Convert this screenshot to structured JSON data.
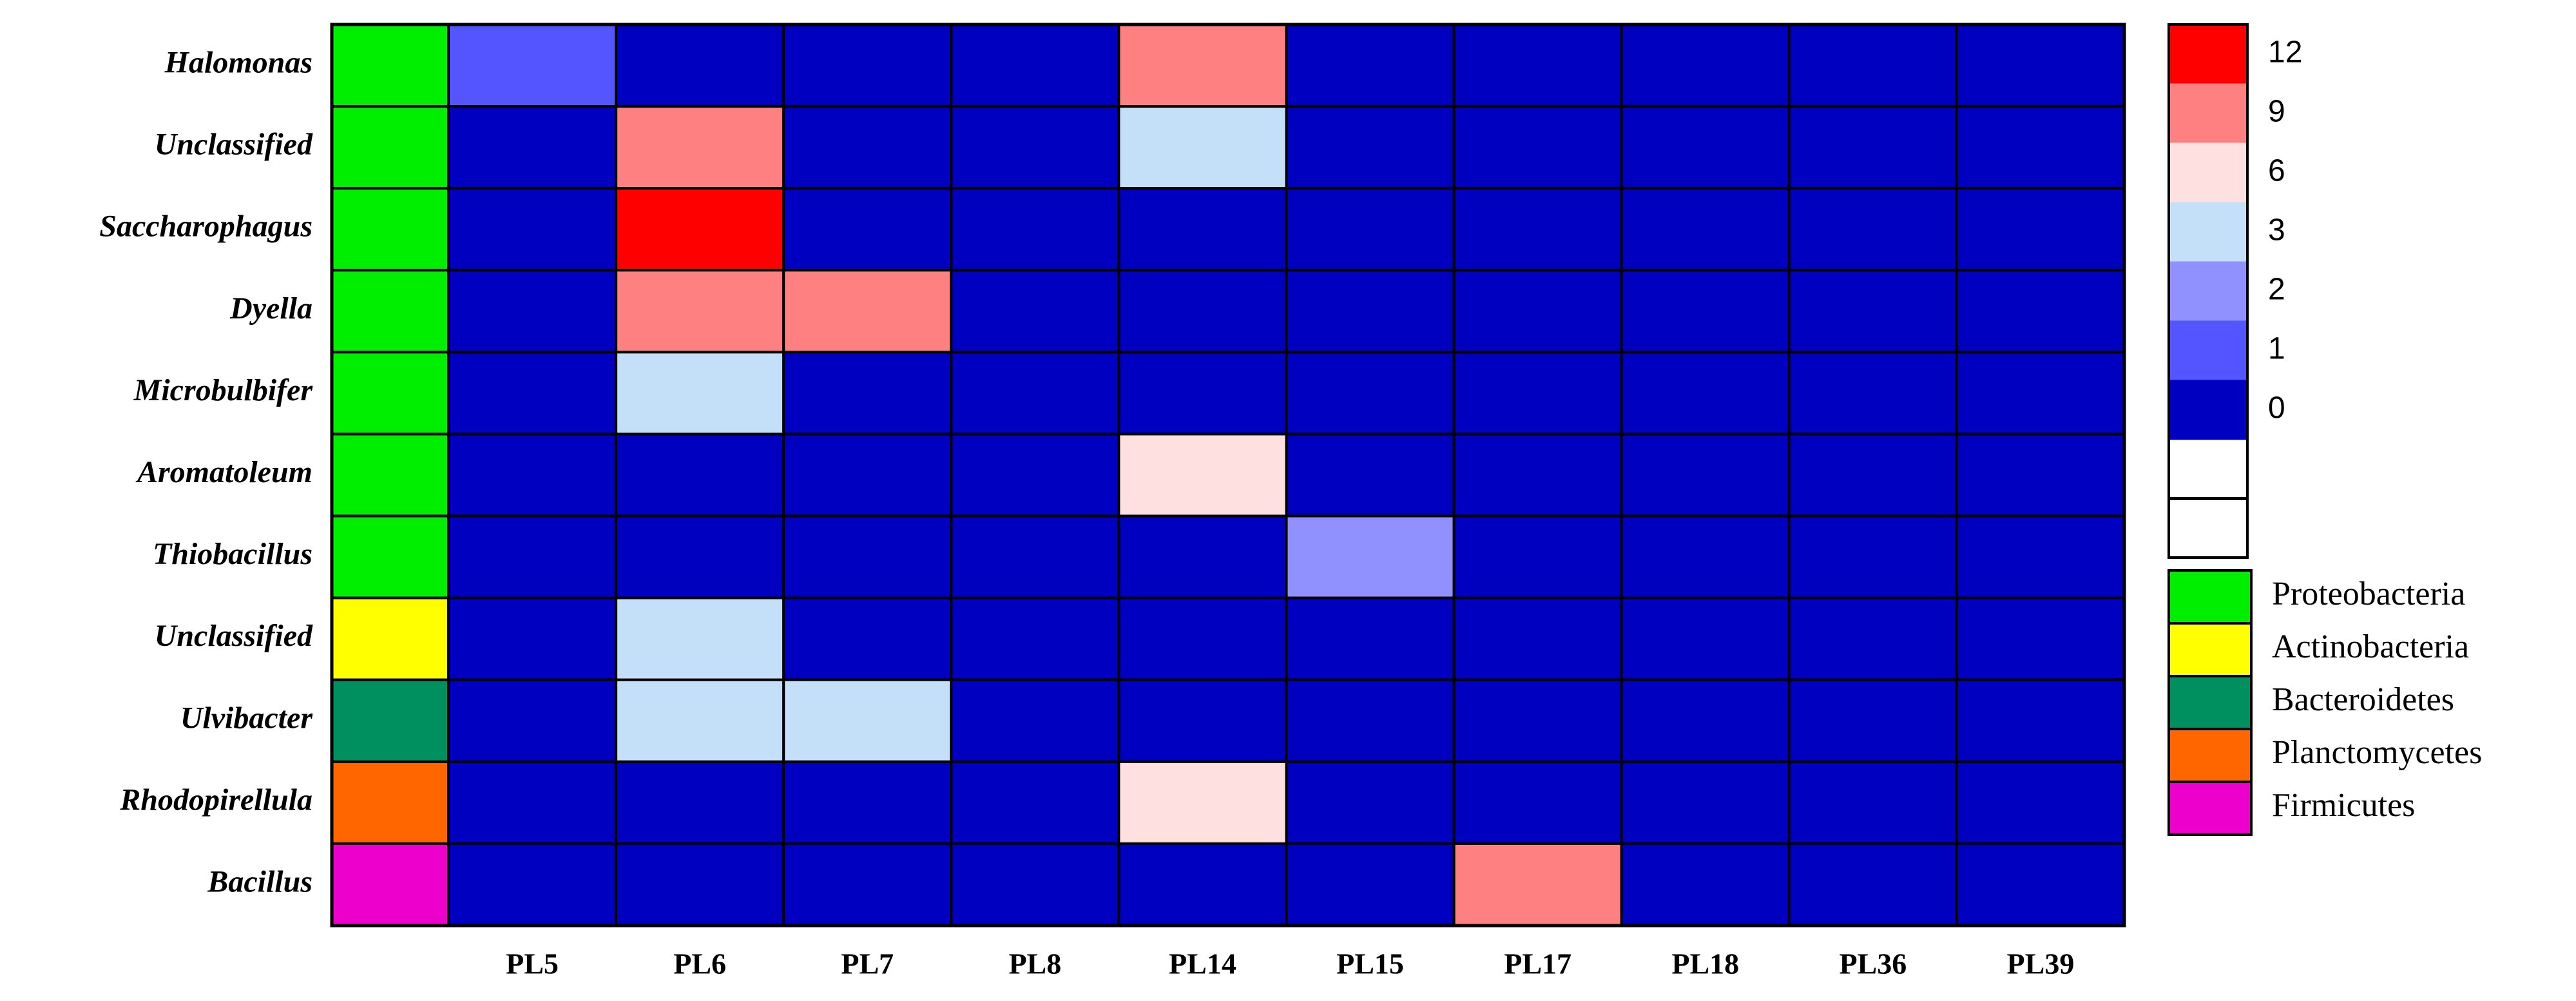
{
  "chart_data": {
    "type": "heatmap",
    "rows": [
      "Halomonas",
      "Unclassified",
      "Saccharophagus",
      "Dyella",
      "Microbulbifer",
      "Aromatoleum",
      "Thiobacillus",
      "Unclassified",
      "Ulvibacter",
      "Rhodopirellula",
      "Bacillus"
    ],
    "columns": [
      "PL5",
      "PL6",
      "PL7",
      "PL8",
      "PL14",
      "PL15",
      "PL17",
      "PL18",
      "PL36",
      "PL39"
    ],
    "values": [
      [
        1,
        0,
        0,
        0,
        9,
        0,
        0,
        0,
        0,
        0
      ],
      [
        0,
        9,
        0,
        0,
        3,
        0,
        0,
        0,
        0,
        0
      ],
      [
        0,
        12,
        0,
        0,
        0,
        0,
        0,
        0,
        0,
        0
      ],
      [
        0,
        9,
        9,
        0,
        0,
        0,
        0,
        0,
        0,
        0
      ],
      [
        0,
        3,
        0,
        0,
        0,
        0,
        0,
        0,
        0,
        0
      ],
      [
        0,
        0,
        0,
        0,
        6,
        0,
        0,
        0,
        0,
        0
      ],
      [
        0,
        0,
        0,
        0,
        0,
        2,
        0,
        0,
        0,
        0
      ],
      [
        0,
        3,
        0,
        0,
        0,
        0,
        0,
        0,
        0,
        0
      ],
      [
        0,
        3,
        3,
        0,
        0,
        0,
        0,
        0,
        0,
        0
      ],
      [
        0,
        0,
        0,
        0,
        6,
        0,
        0,
        0,
        0,
        0
      ],
      [
        0,
        0,
        0,
        0,
        0,
        0,
        9,
        0,
        0,
        0
      ]
    ],
    "colorscale": [
      {
        "value": 12,
        "color": "#ff0000"
      },
      {
        "value": 9,
        "color": "#ff8080"
      },
      {
        "value": 6,
        "color": "#ffe0e0"
      },
      {
        "value": 3,
        "color": "#c4e0f8"
      },
      {
        "value": 2,
        "color": "#9090ff"
      },
      {
        "value": 1,
        "color": "#5555ff"
      },
      {
        "value": 0,
        "color": "#0000c0"
      }
    ],
    "phyla": [
      {
        "name": "Proteobacteria",
        "color": "#00ee00"
      },
      {
        "name": "Actinobacteria",
        "color": "#ffff00"
      },
      {
        "name": "Bacteroidetes",
        "color": "#009060"
      },
      {
        "name": "Planctomycetes",
        "color": "#ff6600"
      },
      {
        "name": "Firmicutes",
        "color": "#ee00cc"
      }
    ],
    "row_phylum": [
      0,
      0,
      0,
      0,
      0,
      0,
      0,
      1,
      2,
      3,
      4
    ]
  }
}
